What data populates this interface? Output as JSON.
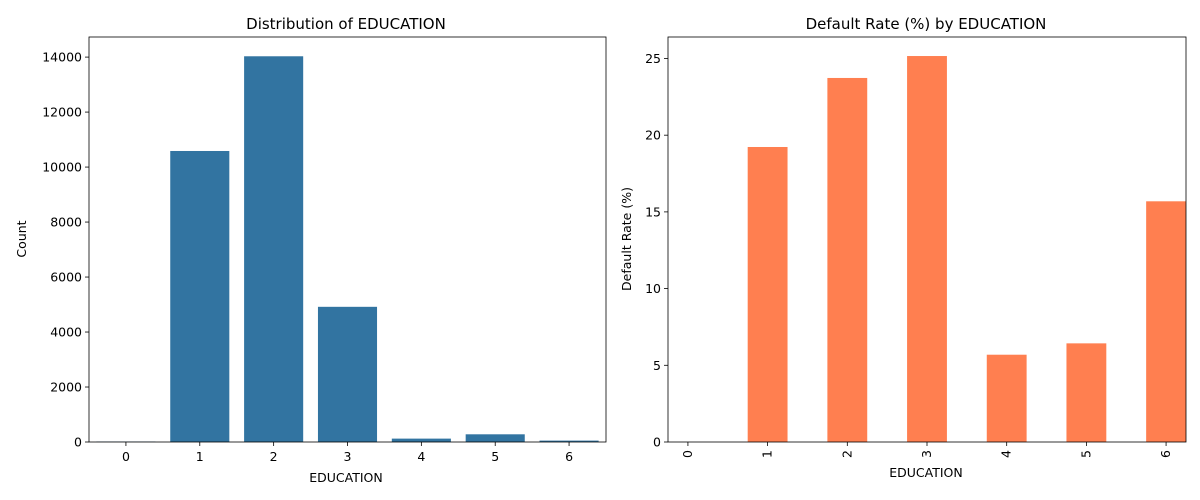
{
  "chart_data": [
    {
      "type": "bar",
      "title": "Distribution of EDUCATION",
      "xlabel": "EDUCATION",
      "ylabel": "Count",
      "categories": [
        "0",
        "1",
        "2",
        "3",
        "4",
        "5",
        "6"
      ],
      "values": [
        14,
        10585,
        14030,
        4917,
        123,
        280,
        51
      ],
      "ylim": [
        0,
        14731
      ],
      "yticks": [
        "0",
        "2000",
        "4000",
        "6000",
        "8000",
        "10000",
        "12000",
        "14000"
      ],
      "color": "#3274a1",
      "grid": false,
      "tick_rotation": 0
    },
    {
      "type": "bar",
      "title": "Default Rate (%) by EDUCATION",
      "xlabel": "EDUCATION",
      "ylabel": "Default Rate (%)",
      "categories": [
        "0",
        "1",
        "2",
        "3",
        "4",
        "5",
        "6"
      ],
      "values": [
        0,
        19.23,
        23.73,
        25.16,
        5.69,
        6.43,
        15.69
      ],
      "ylim": [
        0,
        26.4
      ],
      "yticks": [
        "0",
        "5",
        "10",
        "15",
        "20",
        "25"
      ],
      "color": "#ff7f50",
      "grid": false,
      "tick_rotation": 90
    }
  ]
}
